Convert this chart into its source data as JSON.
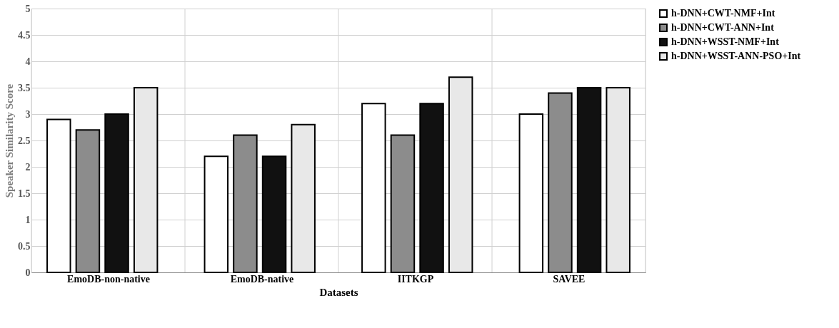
{
  "chart_data": {
    "type": "bar",
    "xlabel": "Datasets",
    "ylabel": "Speaker Similarity Score",
    "categories": [
      "EmoDB-non-native",
      "EmoDB-native",
      "IITKGP",
      "SAVEE"
    ],
    "series": [
      {
        "name": "h-DNN+CWT-NMF+Int",
        "color": "#ffffff",
        "values": [
          2.9,
          2.2,
          3.2,
          3.0
        ]
      },
      {
        "name": "h-DNN+CWT-ANN+Int",
        "color": "#8c8c8c",
        "values": [
          2.7,
          2.6,
          2.6,
          3.4
        ]
      },
      {
        "name": "h-DNN+WSST-NMF+Int",
        "color": "#111111",
        "values": [
          3.0,
          2.2,
          3.2,
          3.5
        ]
      },
      {
        "name": "h-DNN+WSST-ANN-PSO+Int",
        "color": "#e8e8e8",
        "values": [
          3.5,
          2.8,
          3.7,
          3.5
        ]
      }
    ],
    "ylim": [
      0,
      5
    ],
    "yticks": [
      0,
      0.5,
      1,
      1.5,
      2,
      2.5,
      3,
      3.5,
      4,
      4.5,
      5
    ],
    "grid": true,
    "legend": "right"
  }
}
